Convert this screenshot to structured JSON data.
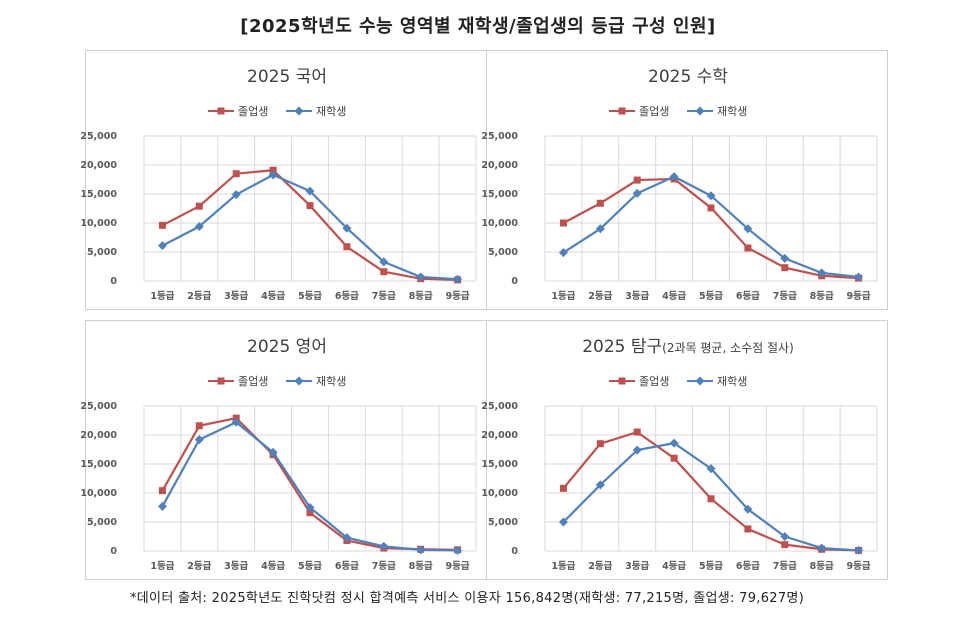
{
  "title": "[2025학년도 수능 영역별 재학생/졸업생의 등급 구성 인원]",
  "footnote": "*데이터 출처: 2025학년도 진학닷컴 정시 합격예측 서비스 이용자 156,842명(재학생: 77,215명, 졸업생: 79,627명)",
  "colors": {
    "graduate": "#c0504d",
    "student": "#4f81bd",
    "grid": "#d9d9d9",
    "axis_text": "#595959"
  },
  "chart_data": [
    {
      "type": "line",
      "title": "2025 국어",
      "subtitle": "",
      "categories": [
        "1등급",
        "2등급",
        "3등급",
        "4등급",
        "5등급",
        "6등급",
        "7등급",
        "8등급",
        "9등급"
      ],
      "yticks": [
        "0",
        "5,000",
        "10,000",
        "15,000",
        "20,000",
        "25,000"
      ],
      "ylim": [
        0,
        25000
      ],
      "legend_position": "top-center",
      "grid": true,
      "series": [
        {
          "name": "졸업생",
          "color": "#c0504d",
          "marker": "square",
          "values": [
            9600,
            12900,
            18500,
            19100,
            13000,
            5900,
            1600,
            400,
            200
          ]
        },
        {
          "name": "재학생",
          "color": "#4f81bd",
          "marker": "diamond",
          "values": [
            6100,
            9400,
            14900,
            18300,
            15500,
            9100,
            3300,
            700,
            300
          ]
        }
      ]
    },
    {
      "type": "line",
      "title": "2025 수학",
      "subtitle": "",
      "categories": [
        "1등급",
        "2등급",
        "3등급",
        "4등급",
        "5등급",
        "6등급",
        "7등급",
        "8등급",
        "9등급"
      ],
      "yticks": [
        "0",
        "5,000",
        "10,000",
        "15,000",
        "20,000",
        "25,000"
      ],
      "ylim": [
        0,
        25000
      ],
      "legend_position": "top-center",
      "grid": true,
      "series": [
        {
          "name": "졸업생",
          "color": "#c0504d",
          "marker": "square",
          "values": [
            10000,
            13400,
            17400,
            17600,
            12600,
            5700,
            2300,
            900,
            500
          ]
        },
        {
          "name": "재학생",
          "color": "#4f81bd",
          "marker": "diamond",
          "values": [
            4900,
            9000,
            15100,
            18000,
            14700,
            9000,
            3900,
            1400,
            700
          ]
        }
      ]
    },
    {
      "type": "line",
      "title": "2025 영어",
      "subtitle": "",
      "categories": [
        "1등급",
        "2등급",
        "3등급",
        "4등급",
        "5등급",
        "6등급",
        "7등급",
        "8등급",
        "9등급"
      ],
      "yticks": [
        "0",
        "5,000",
        "10,000",
        "15,000",
        "20,000",
        "25,000"
      ],
      "ylim": [
        0,
        25000
      ],
      "legend_position": "top-center",
      "grid": true,
      "series": [
        {
          "name": "졸업생",
          "color": "#c0504d",
          "marker": "square",
          "values": [
            10400,
            21600,
            22900,
            16600,
            6600,
            1800,
            500,
            300,
            200
          ]
        },
        {
          "name": "재학생",
          "color": "#4f81bd",
          "marker": "diamond",
          "values": [
            7700,
            19200,
            22200,
            17000,
            7500,
            2300,
            800,
            200,
            100
          ]
        }
      ]
    },
    {
      "type": "line",
      "title": "2025 탐구",
      "subtitle": "(2과목 평균, 소수점 절사)",
      "categories": [
        "1등급",
        "2등급",
        "3등급",
        "4등급",
        "5등급",
        "6등급",
        "7등급",
        "8등급",
        "9등급"
      ],
      "yticks": [
        "0",
        "5,000",
        "10,000",
        "15,000",
        "20,000",
        "25,000"
      ],
      "ylim": [
        0,
        25000
      ],
      "legend_position": "top-center",
      "grid": true,
      "series": [
        {
          "name": "졸업생",
          "color": "#c0504d",
          "marker": "square",
          "values": [
            10800,
            18500,
            20500,
            16000,
            9000,
            3800,
            1100,
            300,
            100
          ]
        },
        {
          "name": "재학생",
          "color": "#4f81bd",
          "marker": "diamond",
          "values": [
            5000,
            11400,
            17400,
            18600,
            14200,
            7200,
            2500,
            500,
            100
          ]
        }
      ]
    }
  ]
}
